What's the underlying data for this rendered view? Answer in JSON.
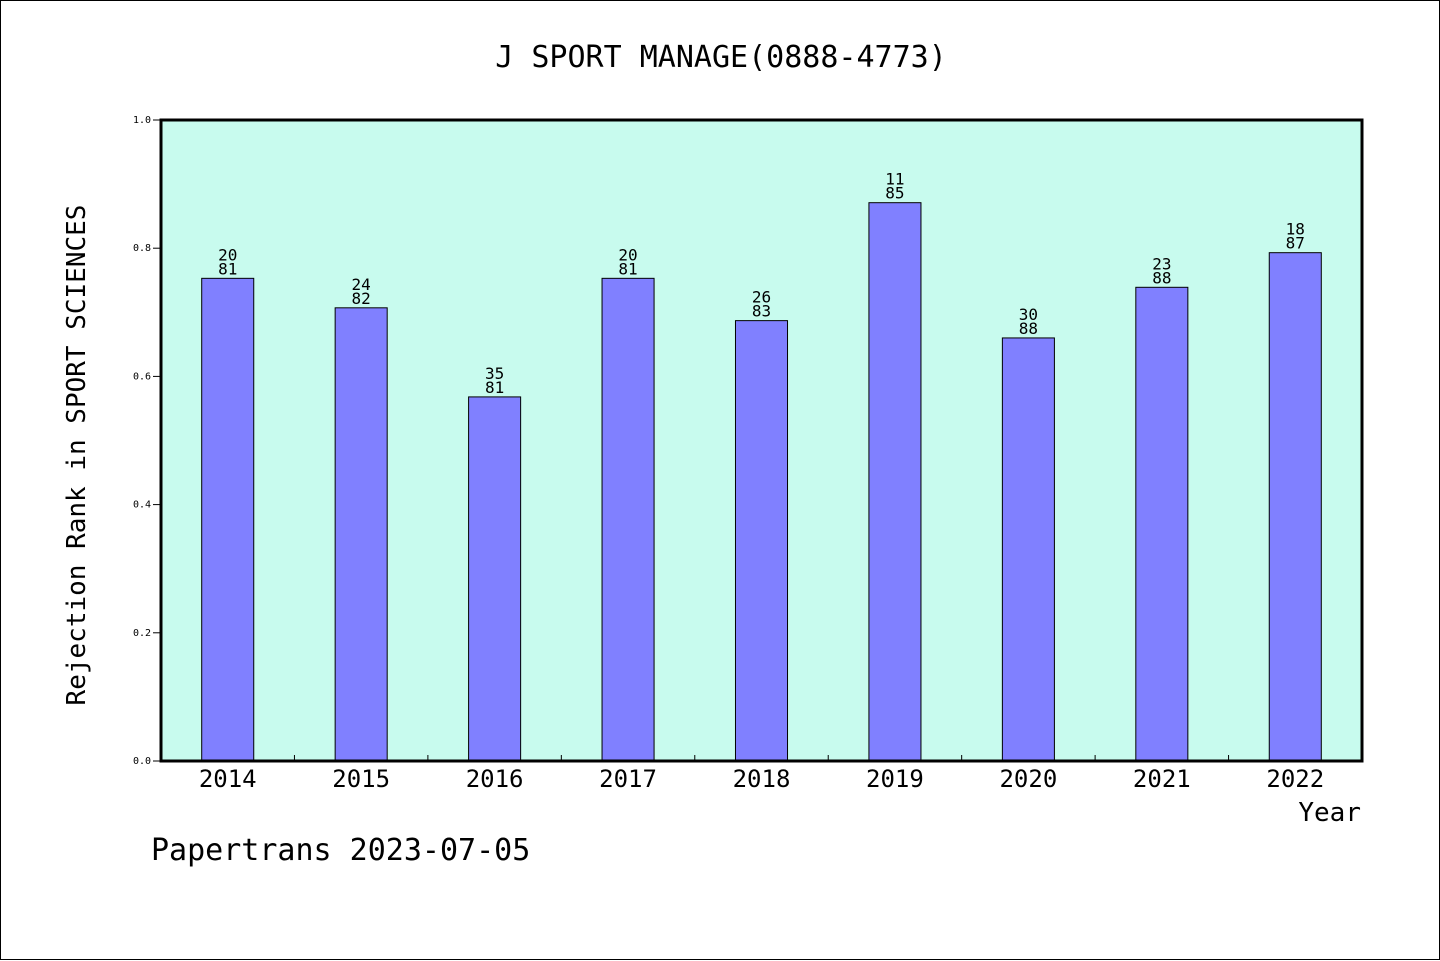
{
  "footer": "Papertrans 2023-07-05",
  "chart_data": {
    "type": "bar",
    "title": "J SPORT MANAGE(0888-4773)",
    "xlabel": "Year",
    "ylabel": "Rejection Rank in SPORT SCIENCES",
    "ylim": [
      0,
      1
    ],
    "yticks": [
      "0.0",
      "0.2",
      "0.4",
      "0.6",
      "0.8",
      "1.0"
    ],
    "grid": false,
    "legend": "none",
    "categories": [
      "2014",
      "2015",
      "2016",
      "2017",
      "2018",
      "2019",
      "2020",
      "2021",
      "2022"
    ],
    "values": [
      0.753,
      0.707,
      0.568,
      0.753,
      0.687,
      0.871,
      0.66,
      0.739,
      0.793
    ],
    "labels_top": [
      "20",
      "24",
      "35",
      "20",
      "26",
      "11",
      "30",
      "23",
      "18"
    ],
    "labels_bottom": [
      "81",
      "82",
      "81",
      "81",
      "83",
      "85",
      "88",
      "88",
      "87"
    ],
    "colors": {
      "plot_background": "#c8fbee",
      "bar_fill": "#8080ff",
      "bar_stroke": "#000000"
    }
  }
}
